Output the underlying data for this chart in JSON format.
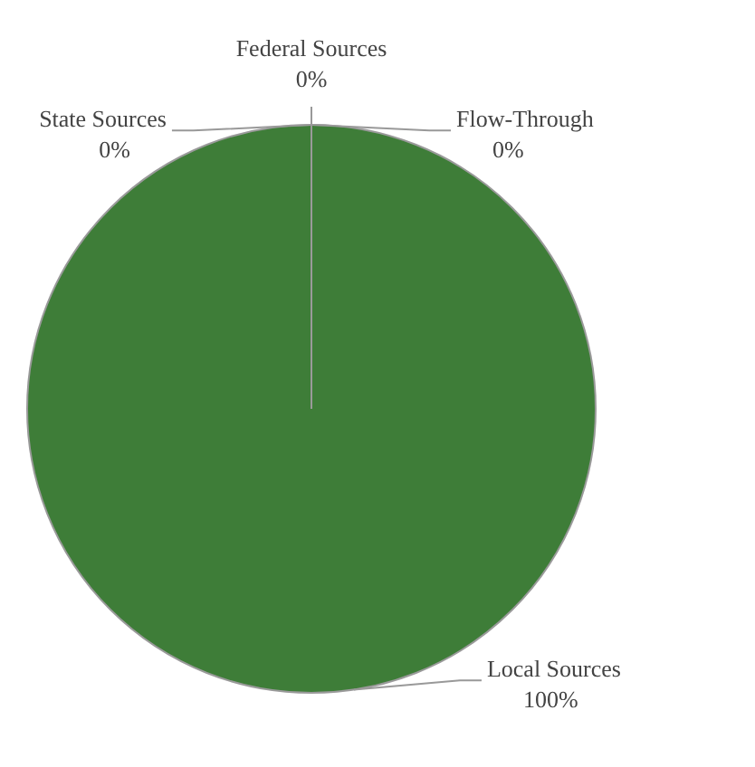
{
  "chart_data": {
    "type": "pie",
    "categories": [
      "Local Sources",
      "State Sources",
      "Federal Sources",
      "Flow-Through"
    ],
    "values": [
      100,
      0,
      0,
      0
    ],
    "colors": [
      "#3e7d38",
      "#4472c4",
      "#a5a5a5",
      "#ffc000"
    ],
    "value_labels": [
      "100%",
      "0%",
      "0%",
      "0%"
    ]
  }
}
